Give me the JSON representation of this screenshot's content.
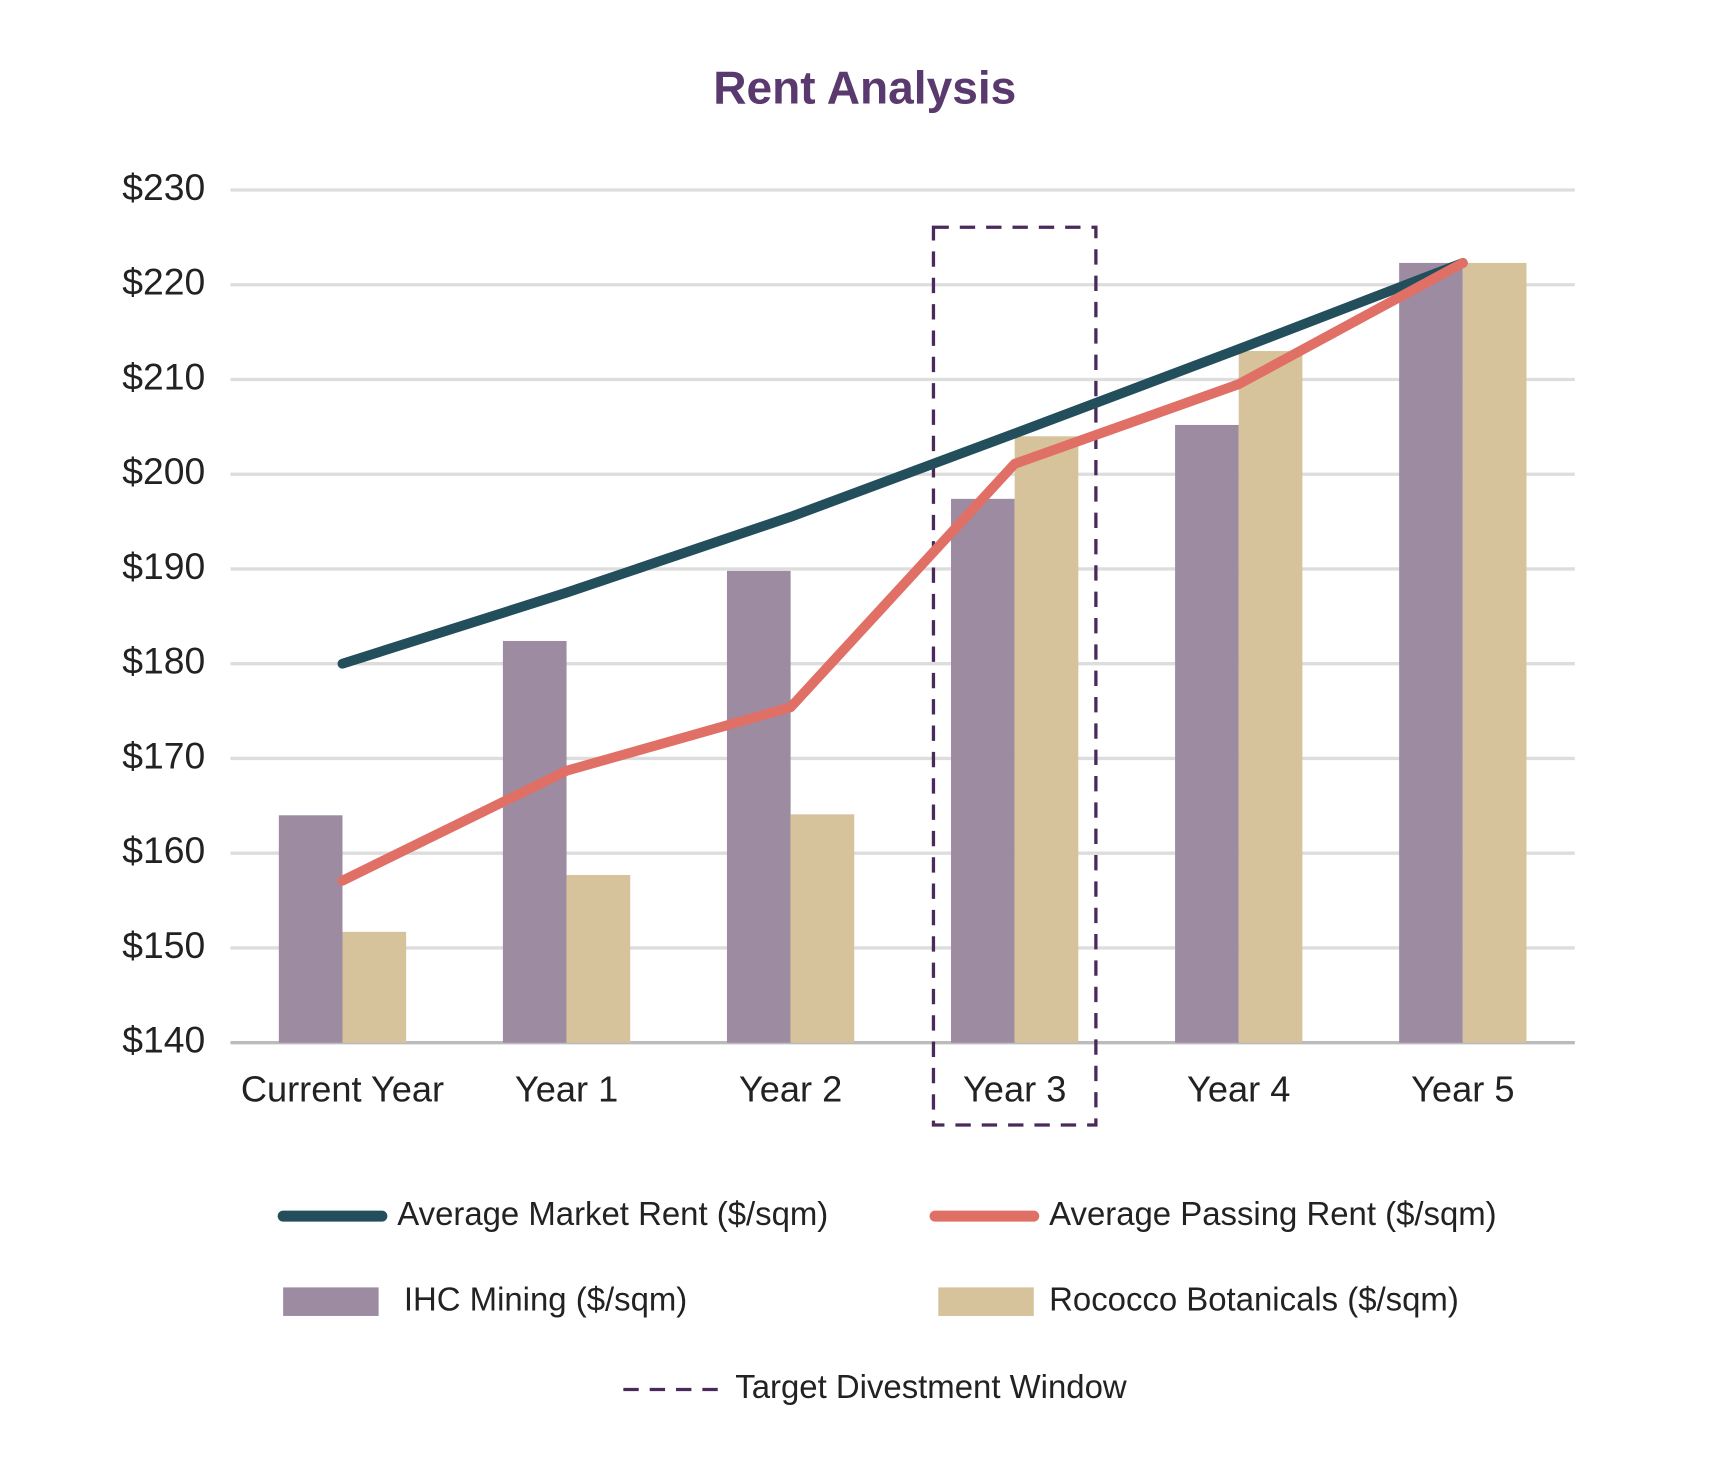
{
  "chart_data": {
    "type": "bar",
    "title": "Rent Analysis",
    "categories": [
      "Current Year",
      "Year 1",
      "Year 2",
      "Year 3",
      "Year 4",
      "Year 5"
    ],
    "ylim": [
      140,
      230
    ],
    "yticks": [
      {
        "value": 140,
        "label": "$140"
      },
      {
        "value": 150,
        "label": "$150"
      },
      {
        "value": 160,
        "label": "$160"
      },
      {
        "value": 170,
        "label": "$170"
      },
      {
        "value": 180,
        "label": "$180"
      },
      {
        "value": 190,
        "label": "$190"
      },
      {
        "value": 200,
        "label": "$200"
      },
      {
        "value": 210,
        "label": "$210"
      },
      {
        "value": 220,
        "label": "$220"
      },
      {
        "value": 230,
        "label": "$230"
      }
    ],
    "grid": true,
    "series": [
      {
        "name": "Average Market Rent ($/sqm)",
        "type": "line",
        "color": "#234e5c",
        "values": [
          180,
          187.5,
          195.5,
          204.3,
          213.2,
          222.3
        ]
      },
      {
        "name": "Average Passing Rent ($/sqm)",
        "type": "line",
        "color": "#e07065",
        "values": [
          157.1,
          168.7,
          175.4,
          201.1,
          209.5,
          222.3
        ]
      },
      {
        "name": "IHC Mining ($/sqm)",
        "type": "bar",
        "color": "#9d8ba2",
        "values": [
          164,
          182.4,
          189.8,
          197.4,
          205.2,
          222.3
        ]
      },
      {
        "name": "Rococco Botanicals ($/sqm)",
        "type": "bar",
        "color": "#d6c29b",
        "values": [
          151.7,
          157.7,
          164.1,
          204,
          213,
          222.3
        ]
      }
    ],
    "highlight": {
      "label": "Target Divestment Window",
      "category": "Year 3",
      "color": "#4a2a5a"
    }
  }
}
